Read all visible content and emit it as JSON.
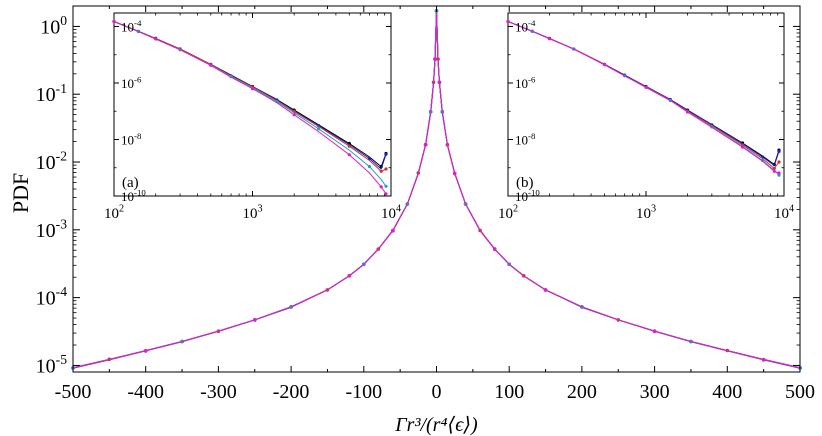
{
  "chart_data": [
    {
      "id": "main",
      "type": "line",
      "xlabel": "Γr³/(r⁴⟨ϵ⟩)",
      "ylabel": "PDF",
      "xlim": [
        -500,
        500
      ],
      "ylim": [
        8e-06,
        2
      ],
      "yscale": "log",
      "xticks": [
        -500,
        -400,
        -300,
        -200,
        -100,
        0,
        100,
        200,
        300,
        400,
        500
      ],
      "xtick_labels": [
        "-500",
        "-400",
        "-300",
        "-200",
        "-100",
        "0",
        "100",
        "200",
        "300",
        "400",
        "500"
      ],
      "yticks": [
        1e-05,
        0.0001,
        0.001,
        0.01,
        0.1,
        1
      ],
      "ytick_labels": [
        "10",
        "10",
        "10",
        "10",
        "10",
        "10"
      ],
      "ytick_exponents": [
        "-5",
        "-4",
        "-3",
        "-2",
        "-1",
        "0"
      ],
      "x": [
        -500,
        -450,
        -400,
        -350,
        -300,
        -250,
        -200,
        -150,
        -120,
        -100,
        -80,
        -60,
        -40,
        -25,
        -15,
        -8,
        -4,
        -2,
        0,
        2,
        4,
        8,
        15,
        25,
        40,
        60,
        80,
        100,
        120,
        150,
        200,
        250,
        300,
        350,
        400,
        450,
        500
      ],
      "series": [
        {
          "color": "#000000",
          "marker_every": 3,
          "offset": 0.0,
          "values": [
            9.2e-06,
            1.22e-05,
            1.65e-05,
            2.25e-05,
            3.2e-05,
            4.7e-05,
            7.3e-05,
            0.00013,
            0.00021,
            0.00031,
            0.00052,
            0.00098,
            0.0024,
            0.0068,
            0.018,
            0.055,
            0.15,
            0.33,
            1.7,
            0.33,
            0.15,
            0.055,
            0.018,
            0.0068,
            0.0024,
            0.00098,
            0.00052,
            0.00031,
            0.00021,
            0.00013,
            7.3e-05,
            4.7e-05,
            3.2e-05,
            2.25e-05,
            1.65e-05,
            1.22e-05,
            9.2e-06
          ]
        },
        {
          "color": "#1f1fbf",
          "marker_every": 3,
          "offset": 1.0,
          "values": [
            9.1e-06,
            1.21e-05,
            1.64e-05,
            2.24e-05,
            3.2e-05,
            4.7e-05,
            7.2e-05,
            0.00013,
            0.00021,
            0.00031,
            0.00052,
            0.00097,
            0.0024,
            0.0068,
            0.018,
            0.054,
            0.15,
            0.33,
            1.7,
            0.33,
            0.15,
            0.054,
            0.018,
            0.0068,
            0.0024,
            0.00097,
            0.00052,
            0.00031,
            0.00021,
            0.00013,
            7.2e-05,
            4.7e-05,
            3.2e-05,
            2.24e-05,
            1.64e-05,
            1.21e-05,
            9.1e-06
          ]
        },
        {
          "color": "#c8372d",
          "marker_every": 3,
          "offset": 2.0,
          "values": [
            9.3e-06,
            1.23e-05,
            1.66e-05,
            2.26e-05,
            3.2e-05,
            4.7e-05,
            7.3e-05,
            0.00013,
            0.00021,
            0.00031,
            0.00052,
            0.00098,
            0.0024,
            0.0069,
            0.018,
            0.055,
            0.15,
            0.33,
            1.7,
            0.33,
            0.15,
            0.055,
            0.018,
            0.0069,
            0.0024,
            0.00098,
            0.00052,
            0.00031,
            0.00021,
            0.00013,
            7.3e-05,
            4.7e-05,
            3.2e-05,
            2.26e-05,
            1.66e-05,
            1.23e-05,
            9.3e-06
          ]
        },
        {
          "color": "#1aa3c8",
          "marker_every": 3,
          "offset": 0.5,
          "values": [
            9.2e-06,
            1.22e-05,
            1.65e-05,
            2.25e-05,
            3.2e-05,
            4.7e-05,
            7.3e-05,
            0.00013,
            0.00021,
            0.00031,
            0.00052,
            0.00098,
            0.0024,
            0.0068,
            0.018,
            0.055,
            0.15,
            0.33,
            1.7,
            0.33,
            0.15,
            0.055,
            0.018,
            0.0068,
            0.0024,
            0.00098,
            0.00052,
            0.00031,
            0.00021,
            0.00013,
            7.3e-05,
            4.7e-05,
            3.2e-05,
            2.25e-05,
            1.65e-05,
            1.22e-05,
            9.2e-06
          ]
        },
        {
          "color": "#e020c8",
          "marker_every": 3,
          "offset": 1.5,
          "values": [
            9.2e-06,
            1.22e-05,
            1.65e-05,
            2.25e-05,
            3.2e-05,
            4.7e-05,
            7.3e-05,
            0.00013,
            0.00021,
            0.00031,
            0.00052,
            0.00098,
            0.0024,
            0.0068,
            0.018,
            0.055,
            0.15,
            0.33,
            1.7,
            0.33,
            0.15,
            0.055,
            0.018,
            0.0068,
            0.0024,
            0.00098,
            0.00052,
            0.00031,
            0.00021,
            0.00013,
            7.3e-05,
            4.7e-05,
            3.2e-05,
            2.25e-05,
            1.65e-05,
            1.22e-05,
            9.2e-06
          ]
        }
      ]
    },
    {
      "id": "inset-a",
      "type": "line",
      "panel_label": "(a)",
      "xscale": "log",
      "yscale": "log",
      "xlim": [
        100,
        10000
      ],
      "ylim": [
        1e-10,
        0.0003
      ],
      "xticks": [
        100,
        1000,
        10000
      ],
      "xtick_labels": [
        "10",
        "10",
        "10"
      ],
      "xtick_exponents": [
        "2",
        "3",
        "4"
      ],
      "yticks": [
        1e-10,
        1e-08,
        1e-06,
        0.0001
      ],
      "ytick_labels": [
        "10",
        "10",
        "10",
        "10"
      ],
      "ytick_exponents": [
        "-10",
        "-8",
        "-6",
        "-4"
      ],
      "x": [
        100,
        150,
        200,
        300,
        500,
        700,
        1000,
        1500,
        2000,
        3000,
        5000,
        7000,
        8500,
        9200
      ],
      "series": [
        {
          "color": "#000000",
          "values": [
            0.00015,
            6.8e-05,
            3.8e-05,
            1.6e-05,
            4.6e-06,
            1.9e-06,
            7.5e-07,
            2.6e-07,
            1.1e-07,
            3.3e-08,
            7.2e-09,
            2.4e-09,
            1.1e-09,
            3.2e-09
          ]
        },
        {
          "color": "#1f1fbf",
          "values": [
            0.00015,
            6.7e-05,
            3.7e-05,
            1.6e-05,
            4.5e-06,
            1.8e-06,
            7.3e-07,
            2.5e-07,
            1e-07,
            3.1e-08,
            6.6e-09,
            2.1e-09,
            9e-10,
            3e-09
          ]
        },
        {
          "color": "#c8372d",
          "values": [
            0.00015,
            6.7e-05,
            3.7e-05,
            1.6e-05,
            4.5e-06,
            1.8e-06,
            7.2e-07,
            2.4e-07,
            9.8e-08,
            2.9e-08,
            5.8e-09,
            1.8e-09,
            7.5e-10,
            9e-10
          ]
        },
        {
          "color": "#1aa3c8",
          "values": [
            0.00015,
            6.6e-05,
            3.6e-05,
            1.5e-05,
            4.3e-06,
            1.7e-06,
            6.8e-07,
            2.2e-07,
            8.8e-08,
            2.4e-08,
            4.2e-09,
            1.1e-09,
            3.8e-10,
            2.2e-10
          ]
        },
        {
          "color": "#e020c8",
          "values": [
            0.00015,
            6.6e-05,
            3.6e-05,
            1.5e-05,
            4.2e-06,
            1.6e-06,
            6.3e-07,
            2e-07,
            7.5e-08,
            1.9e-08,
            2.9e-09,
            6.5e-10,
            2.1e-10,
            1.2e-10
          ]
        }
      ]
    },
    {
      "id": "inset-b",
      "type": "line",
      "panel_label": "(b)",
      "xscale": "log",
      "yscale": "log",
      "xlim": [
        100,
        10000
      ],
      "ylim": [
        1e-10,
        0.0003
      ],
      "xticks": [
        100,
        1000,
        10000
      ],
      "xtick_labels": [
        "10",
        "10",
        "10"
      ],
      "xtick_exponents": [
        "2",
        "3",
        "4"
      ],
      "yticks": [
        1e-10,
        1e-08,
        1e-06,
        0.0001
      ],
      "ytick_labels": [
        "10",
        "10",
        "10",
        "10"
      ],
      "ytick_exponents": [
        "-10",
        "-8",
        "-6",
        "-4"
      ],
      "x": [
        100,
        150,
        200,
        300,
        500,
        700,
        1000,
        1500,
        2000,
        3000,
        5000,
        7000,
        8500,
        9200
      ],
      "series": [
        {
          "color": "#000000",
          "values": [
            0.00015,
            6.8e-05,
            3.8e-05,
            1.6e-05,
            4.6e-06,
            1.9e-06,
            7.5e-07,
            2.6e-07,
            1.1e-07,
            3.4e-08,
            7.5e-09,
            2.6e-09,
            1.3e-09,
            4.2e-09
          ]
        },
        {
          "color": "#1f1fbf",
          "values": [
            0.00015,
            6.8e-05,
            3.8e-05,
            1.6e-05,
            4.6e-06,
            1.9e-06,
            7.4e-07,
            2.6e-07,
            1.1e-07,
            3.3e-08,
            7.1e-09,
            2.4e-09,
            1.2e-09,
            3.8e-09
          ]
        },
        {
          "color": "#c8372d",
          "values": [
            0.00015,
            6.7e-05,
            3.7e-05,
            1.6e-05,
            4.5e-06,
            1.8e-06,
            7.2e-07,
            2.5e-07,
            1e-07,
            3.1e-08,
            6.4e-09,
            2.1e-09,
            9.5e-10,
            1.6e-09
          ]
        },
        {
          "color": "#1aa3c8",
          "values": [
            0.00015,
            6.7e-05,
            3.7e-05,
            1.6e-05,
            4.4e-06,
            1.8e-06,
            7e-07,
            2.4e-07,
            9.5e-08,
            2.8e-08,
            5.7e-09,
            1.8e-09,
            8e-10,
            5.5e-10
          ]
        },
        {
          "color": "#e020c8",
          "values": [
            0.00015,
            6.7e-05,
            3.7e-05,
            1.6e-05,
            4.4e-06,
            1.8e-06,
            7e-07,
            2.4e-07,
            9.4e-08,
            2.7e-08,
            5.4e-09,
            1.7e-09,
            7.5e-10,
            6.5e-10
          ]
        }
      ]
    }
  ]
}
